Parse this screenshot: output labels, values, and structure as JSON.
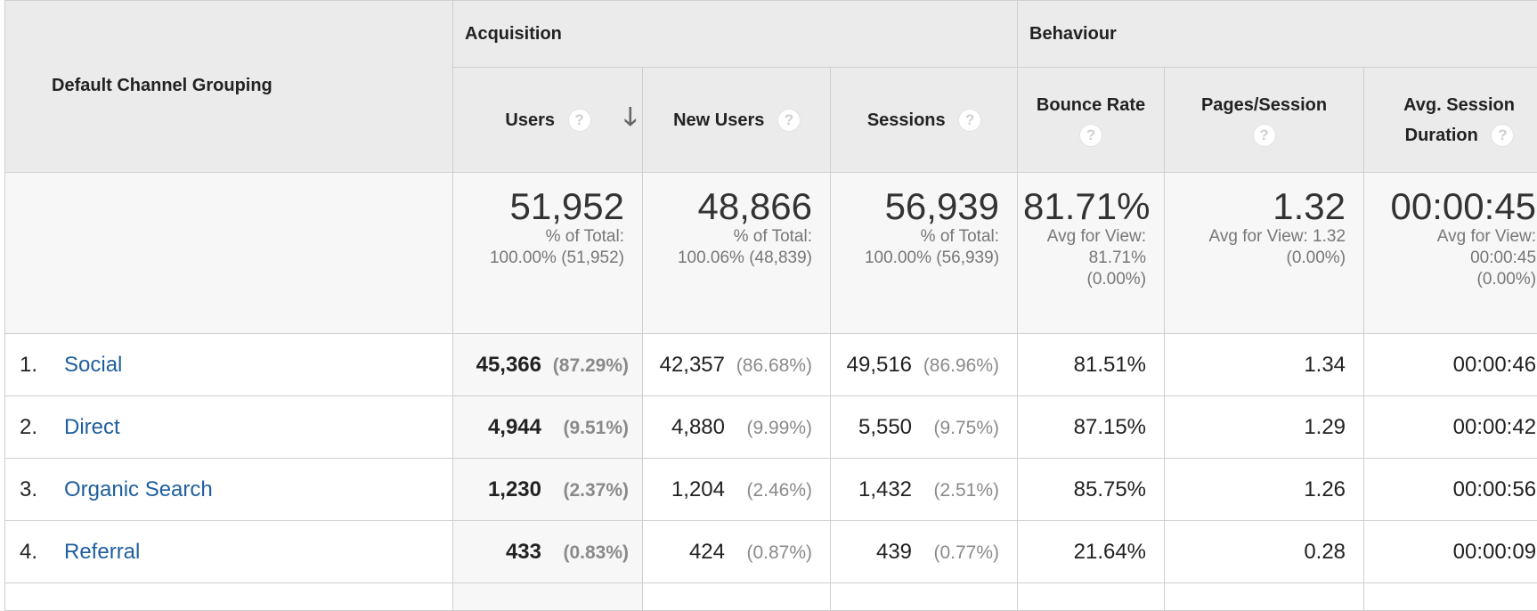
{
  "table": {
    "dimension_header": "Default Channel Grouping",
    "groups": {
      "acquisition": "Acquisition",
      "behaviour": "Behaviour"
    },
    "columns": {
      "users": "Users",
      "new_users": "New Users",
      "sessions": "Sessions",
      "bounce_rate": "Bounce Rate",
      "pages_session": "Pages/Session",
      "avg_session_line1": "Avg. Session",
      "avg_session_line2": "Duration"
    },
    "help_glyph": "?",
    "sort_glyph": "🡓",
    "totals": {
      "users": {
        "value": "51,952",
        "line1": "% of Total:",
        "line2": "100.00% (51,952)"
      },
      "new_users": {
        "value": "48,866",
        "line1": "% of Total:",
        "line2": "100.06% (48,839)"
      },
      "sessions": {
        "value": "56,939",
        "line1": "% of Total:",
        "line2": "100.00% (56,939)"
      },
      "bounce_rate": {
        "value": "81.71%",
        "line1": "Avg for View:",
        "line2": "81.71%",
        "line3": "(0.00%)"
      },
      "pages_session": {
        "value": "1.32",
        "line1": "Avg for View: 1.32",
        "line2": "(0.00%)"
      },
      "avg_session": {
        "value": "00:00:45",
        "line1": "Avg for View:",
        "line2": "00:00:45",
        "line3": "(0.00%)"
      }
    },
    "rows": [
      {
        "index": "1.",
        "channel": "Social",
        "users": "45,366",
        "users_pct": "(87.29%)",
        "new_users": "42,357",
        "new_users_pct": "(86.68%)",
        "sessions": "49,516",
        "sessions_pct": "(86.96%)",
        "bounce_rate": "81.51%",
        "pages_session": "1.34",
        "avg_session": "00:00:46"
      },
      {
        "index": "2.",
        "channel": "Direct",
        "users": "4,944",
        "users_pct": "(9.51%)",
        "new_users": "4,880",
        "new_users_pct": "(9.99%)",
        "sessions": "5,550",
        "sessions_pct": "(9.75%)",
        "bounce_rate": "87.15%",
        "pages_session": "1.29",
        "avg_session": "00:00:42"
      },
      {
        "index": "3.",
        "channel": "Organic Search",
        "users": "1,230",
        "users_pct": "(2.37%)",
        "new_users": "1,204",
        "new_users_pct": "(2.46%)",
        "sessions": "1,432",
        "sessions_pct": "(2.51%)",
        "bounce_rate": "85.75%",
        "pages_session": "1.26",
        "avg_session": "00:00:56"
      },
      {
        "index": "4.",
        "channel": "Referral",
        "users": "433",
        "users_pct": "(0.83%)",
        "new_users": "424",
        "new_users_pct": "(0.87%)",
        "sessions": "439",
        "sessions_pct": "(0.77%)",
        "bounce_rate": "21.64%",
        "pages_session": "0.28",
        "avg_session": "00:00:09"
      }
    ]
  }
}
